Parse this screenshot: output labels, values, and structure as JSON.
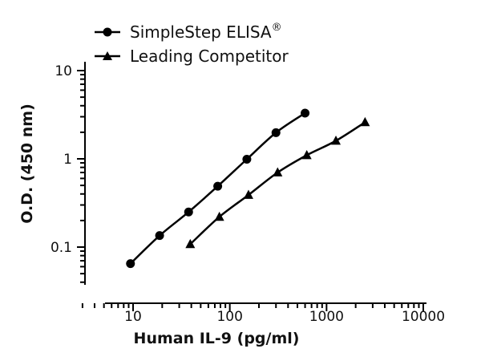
{
  "chart_data": {
    "type": "line",
    "xlabel": "Human IL-9 (pg/ml)",
    "ylabel": "O.D. (450 nm)",
    "xscale": "log",
    "yscale": "log",
    "xlim": [
      3,
      10000
    ],
    "ylim": [
      0.04,
      10
    ],
    "xticks": [
      10,
      100,
      1000,
      10000
    ],
    "xtick_labels": [
      "10",
      "100",
      "1000",
      "10000"
    ],
    "yticks": [
      0.1,
      1,
      10
    ],
    "ytick_labels": [
      "0.1",
      "1",
      "10"
    ],
    "legend_position": "top-left",
    "series": [
      {
        "name": "SimpleStep ELISA",
        "name_suffix": "®",
        "marker": "circle",
        "color": "#000000",
        "points": [
          [
            9.4,
            0.065
          ],
          [
            18.8,
            0.135
          ],
          [
            37.5,
            0.25
          ],
          [
            75,
            0.49
          ],
          [
            150,
            0.99
          ],
          [
            300,
            1.98
          ],
          [
            600,
            3.3
          ]
        ]
      },
      {
        "name": "Leading Competitor",
        "marker": "triangle",
        "color": "#000000",
        "points": [
          [
            39,
            0.108
          ],
          [
            78,
            0.22
          ],
          [
            156,
            0.39
          ],
          [
            312,
            0.7
          ],
          [
            625,
            1.1
          ],
          [
            1250,
            1.6
          ],
          [
            2500,
            2.6
          ]
        ]
      }
    ]
  }
}
